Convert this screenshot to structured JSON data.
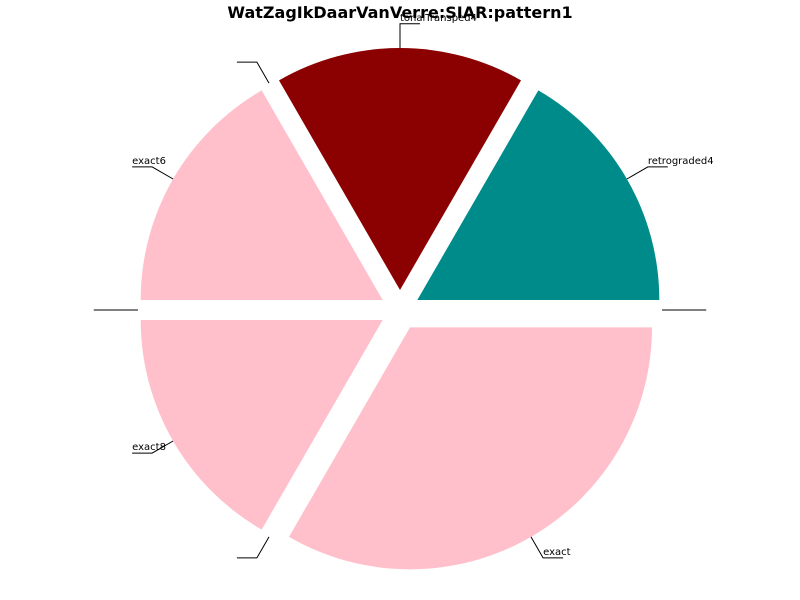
{
  "chart_data": {
    "type": "pie",
    "title": "WatZagIkDaarVanVerre:SIAR:pattern1",
    "slices": [
      {
        "label": "retrograded4",
        "value": 1,
        "color": "#008b8b",
        "explode": true
      },
      {
        "label": "tonalTransped4",
        "value": 1,
        "color": "#8b0000",
        "explode": true
      },
      {
        "label": "",
        "value": 0,
        "color": "#ffc0cb",
        "explode": true
      },
      {
        "label": "exact6",
        "value": 1,
        "color": "#ffc0cb",
        "explode": true
      },
      {
        "label": "",
        "value": 0,
        "color": "#ffc0cb",
        "explode": true
      },
      {
        "label": "exact8",
        "value": 1,
        "color": "#ffc0cb",
        "explode": true
      },
      {
        "label": "",
        "value": 0,
        "color": "#ffc0cb",
        "explode": true
      },
      {
        "label": "exact",
        "value": 2,
        "color": "#ffc0cb",
        "explode": true
      },
      {
        "label": "",
        "value": 0,
        "color": "#ffc0cb",
        "explode": true
      }
    ],
    "start_angle_deg": 0,
    "direction": "counterclockwise",
    "legend": "none"
  }
}
